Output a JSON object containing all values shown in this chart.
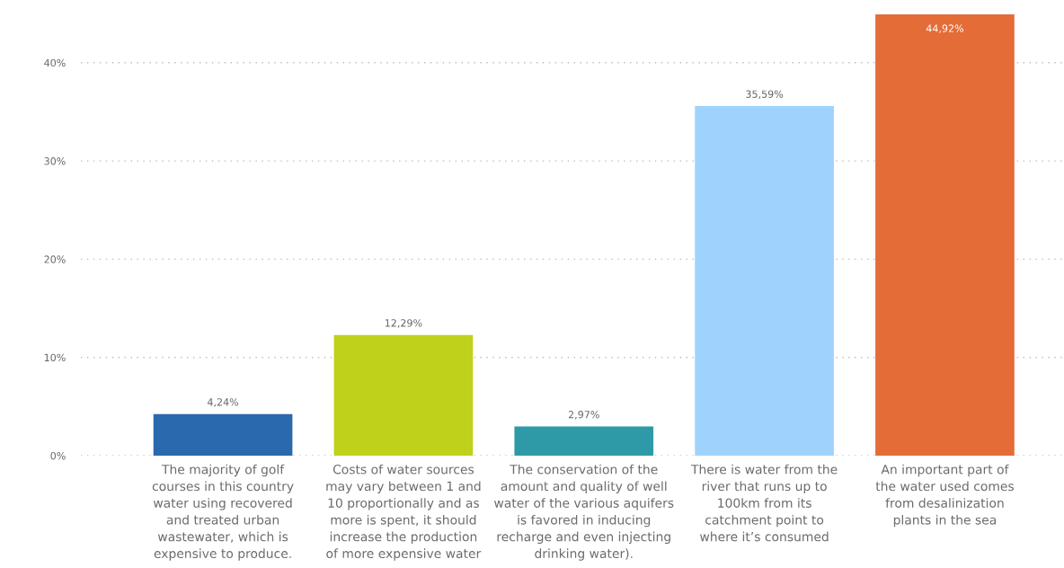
{
  "chart_data": {
    "type": "bar",
    "categories": [
      "The majority of golf\ncourses in this country\nwater using recovered\nand treated urban\nwastewater, which is\nexpensive to produce.",
      "Costs of water sources\nmay vary between 1 and\n10 proportionally and as\nmore is spent, it should\nincrease the production\nof more expensive water",
      "The conservation of the\namount and quality of well\nwater of the various aquifers\nis favored in inducing\nrecharge and even injecting\ndrinking water).",
      "There is water from the\nriver that runs up to\n100km from its\ncatchment point to\nwhere it’s consumed",
      "An important part of\nthe water used comes\nfrom desalinization\nplants in the sea"
    ],
    "values": [
      4.24,
      12.29,
      2.97,
      35.59,
      44.92
    ],
    "colors": [
      "#2a69ad",
      "#bfd11a",
      "#2e9aa8",
      "#9fd3fd",
      "#e46c37"
    ],
    "value_labels": [
      "4,24%",
      "12,29%",
      "2,97%",
      "35,59%",
      "44,92%"
    ],
    "ylim": [
      0,
      44.92
    ],
    "yticks": [
      {
        "value": 0,
        "label": "0%"
      },
      {
        "value": 10,
        "label": "10%"
      },
      {
        "value": 20,
        "label": "20%"
      },
      {
        "value": 30,
        "label": "30%"
      },
      {
        "value": 40,
        "label": "40%"
      }
    ],
    "grid": "y"
  }
}
